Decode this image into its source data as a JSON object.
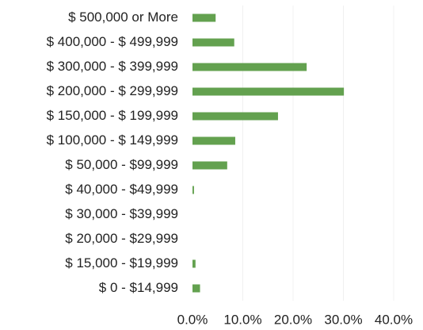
{
  "chart_data": {
    "type": "bar",
    "orientation": "horizontal",
    "categories": [
      "$ 500,000 or More",
      "$ 400,000 - $ 499,999",
      "$ 300,000 - $ 399,999",
      "$ 200,000 - $ 299,999",
      "$ 150,000 - $ 199,999",
      "$ 100,000 - $ 149,999",
      "$ 50,000 - $99,999",
      "$ 40,000 - $49,999",
      "$ 30,000 - $39,999",
      "$ 20,000 - $29,999",
      "$ 15,000 - $19,999",
      "$ 0 - $14,999"
    ],
    "values": [
      4.6,
      8.3,
      22.7,
      30.1,
      17.0,
      8.5,
      6.9,
      0.3,
      0,
      0,
      0.6,
      1.5
    ],
    "color": "#63a14f",
    "xlim": [
      0,
      40
    ],
    "xticks": [
      {
        "value": 0,
        "label": "0.0%"
      },
      {
        "value": 10,
        "label": "10.0%"
      },
      {
        "value": 20,
        "label": "20.0%"
      },
      {
        "value": 30,
        "label": "30.0%"
      },
      {
        "value": 40,
        "label": "40.0%"
      }
    ],
    "grid": true
  }
}
